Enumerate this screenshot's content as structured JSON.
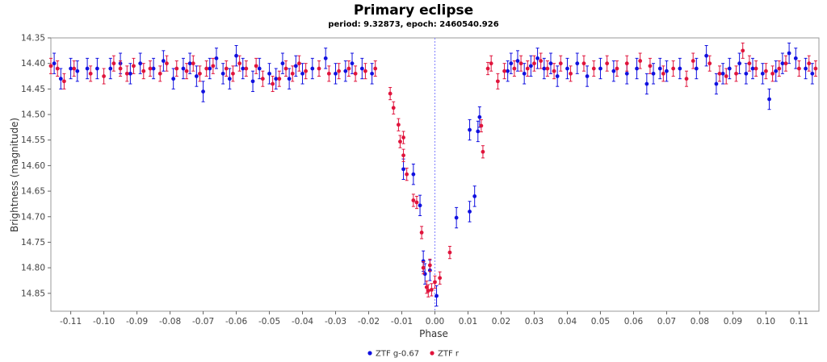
{
  "chart_data": {
    "type": "scatter",
    "title": "Primary eclipse",
    "subtitle": "period: 9.32873, epoch: 2460540.926",
    "xlabel": "Phase",
    "ylabel": "Brightness (magnitude)",
    "xlim": [
      -0.116,
      0.116
    ],
    "ylim": [
      14.885,
      14.35
    ],
    "y_inverted": true,
    "x_ticks": [
      -0.11,
      -0.1,
      -0.09,
      -0.08,
      -0.07,
      -0.06,
      -0.05,
      -0.04,
      -0.03,
      -0.02,
      -0.01,
      0.0,
      0.01,
      0.02,
      0.03,
      0.04,
      0.05,
      0.06,
      0.07,
      0.08,
      0.09,
      0.1,
      0.11
    ],
    "x_tick_labels": [
      "-0.11",
      "-0.10",
      "-0.09",
      "-0.08",
      "-0.07",
      "-0.06",
      "-0.05",
      "-0.04",
      "-0.03",
      "-0.02",
      "-0.01",
      "0.00",
      "0.01",
      "0.02",
      "0.03",
      "0.04",
      "0.05",
      "0.06",
      "0.07",
      "0.08",
      "0.09",
      "0.10",
      "0.11"
    ],
    "y_ticks": [
      14.35,
      14.4,
      14.45,
      14.5,
      14.55,
      14.6,
      14.65,
      14.7,
      14.75,
      14.8,
      14.85
    ],
    "y_tick_labels": [
      "14.35",
      "14.40",
      "14.45",
      "14.50",
      "14.55",
      "14.60",
      "14.65",
      "14.70",
      "14.75",
      "14.80",
      "14.85"
    ],
    "reference_line_x": 0.0,
    "grid": false,
    "legend_position": "bottom-center",
    "series": [
      {
        "name": "ZTF g-0.67",
        "color": "#1010e0",
        "points": [
          [
            -0.115,
            14.4,
            0.02
          ],
          [
            -0.113,
            14.43,
            0.02
          ],
          [
            -0.11,
            14.41,
            0.02
          ],
          [
            -0.108,
            14.415,
            0.02
          ],
          [
            -0.105,
            14.41,
            0.02
          ],
          [
            -0.102,
            14.41,
            0.02
          ],
          [
            -0.098,
            14.41,
            0.02
          ],
          [
            -0.095,
            14.4,
            0.02
          ],
          [
            -0.092,
            14.42,
            0.02
          ],
          [
            -0.089,
            14.4,
            0.02
          ],
          [
            -0.085,
            14.41,
            0.02
          ],
          [
            -0.082,
            14.395,
            0.02
          ],
          [
            -0.079,
            14.43,
            0.02
          ],
          [
            -0.076,
            14.41,
            0.02
          ],
          [
            -0.074,
            14.4,
            0.02
          ],
          [
            -0.072,
            14.425,
            0.02
          ],
          [
            -0.07,
            14.455,
            0.02
          ],
          [
            -0.068,
            14.41,
            0.02
          ],
          [
            -0.066,
            14.39,
            0.02
          ],
          [
            -0.064,
            14.42,
            0.02
          ],
          [
            -0.062,
            14.43,
            0.02
          ],
          [
            -0.06,
            14.385,
            0.02
          ],
          [
            -0.058,
            14.41,
            0.02
          ],
          [
            -0.055,
            14.435,
            0.02
          ],
          [
            -0.053,
            14.41,
            0.02
          ],
          [
            -0.05,
            14.42,
            0.02
          ],
          [
            -0.048,
            14.43,
            0.02
          ],
          [
            -0.046,
            14.4,
            0.02
          ],
          [
            -0.044,
            14.43,
            0.02
          ],
          [
            -0.042,
            14.405,
            0.02
          ],
          [
            -0.04,
            14.42,
            0.02
          ],
          [
            -0.037,
            14.41,
            0.02
          ],
          [
            -0.033,
            14.39,
            0.02
          ],
          [
            -0.03,
            14.42,
            0.02
          ],
          [
            -0.027,
            14.415,
            0.02
          ],
          [
            -0.025,
            14.4,
            0.02
          ],
          [
            -0.022,
            14.41,
            0.02
          ],
          [
            -0.019,
            14.42,
            0.02
          ],
          [
            -0.0095,
            14.607,
            0.02
          ],
          [
            -0.0065,
            14.617,
            0.02
          ],
          [
            -0.0045,
            14.678,
            0.02
          ],
          [
            -0.0035,
            14.787,
            0.02
          ],
          [
            -0.003,
            14.812,
            0.02
          ],
          [
            -0.0015,
            14.805,
            0.02
          ],
          [
            0.0005,
            14.855,
            0.02
          ],
          [
            0.0065,
            14.702,
            0.02
          ],
          [
            0.0105,
            14.69,
            0.02
          ],
          [
            0.0105,
            14.53,
            0.02
          ],
          [
            0.012,
            14.66,
            0.02
          ],
          [
            0.013,
            14.533,
            0.02
          ],
          [
            0.0135,
            14.505,
            0.02
          ],
          [
            0.022,
            14.415,
            0.02
          ],
          [
            0.023,
            14.4,
            0.02
          ],
          [
            0.025,
            14.395,
            0.02
          ],
          [
            0.027,
            14.42,
            0.02
          ],
          [
            0.029,
            14.405,
            0.02
          ],
          [
            0.031,
            14.39,
            0.02
          ],
          [
            0.033,
            14.41,
            0.02
          ],
          [
            0.035,
            14.4,
            0.02
          ],
          [
            0.037,
            14.425,
            0.02
          ],
          [
            0.04,
            14.41,
            0.02
          ],
          [
            0.043,
            14.4,
            0.02
          ],
          [
            0.046,
            14.425,
            0.02
          ],
          [
            0.05,
            14.41,
            0.02
          ],
          [
            0.054,
            14.415,
            0.02
          ],
          [
            0.058,
            14.42,
            0.02
          ],
          [
            0.061,
            14.41,
            0.02
          ],
          [
            0.064,
            14.44,
            0.02
          ],
          [
            0.066,
            14.42,
            0.02
          ],
          [
            0.068,
            14.41,
            0.02
          ],
          [
            0.07,
            14.415,
            0.02
          ],
          [
            0.074,
            14.41,
            0.02
          ],
          [
            0.079,
            14.41,
            0.02
          ],
          [
            0.082,
            14.385,
            0.02
          ],
          [
            0.085,
            14.44,
            0.02
          ],
          [
            0.087,
            14.42,
            0.02
          ],
          [
            0.089,
            14.41,
            0.02
          ],
          [
            0.092,
            14.4,
            0.02
          ],
          [
            0.094,
            14.42,
            0.02
          ],
          [
            0.096,
            14.41,
            0.02
          ],
          [
            0.099,
            14.42,
            0.02
          ],
          [
            0.101,
            14.47,
            0.02
          ],
          [
            0.103,
            14.415,
            0.02
          ],
          [
            0.105,
            14.4,
            0.02
          ],
          [
            0.107,
            14.38,
            0.02
          ],
          [
            0.109,
            14.39,
            0.02
          ],
          [
            0.112,
            14.41,
            0.02
          ],
          [
            0.114,
            14.42,
            0.02
          ]
        ]
      },
      {
        "name": "ZTF r",
        "color": "#e0143c",
        "points": [
          [
            -0.116,
            14.405,
            0.015
          ],
          [
            -0.114,
            14.41,
            0.015
          ],
          [
            -0.112,
            14.435,
            0.015
          ],
          [
            -0.109,
            14.41,
            0.015
          ],
          [
            -0.104,
            14.42,
            0.015
          ],
          [
            -0.1,
            14.425,
            0.015
          ],
          [
            -0.097,
            14.4,
            0.015
          ],
          [
            -0.095,
            14.41,
            0.015
          ],
          [
            -0.093,
            14.42,
            0.015
          ],
          [
            -0.091,
            14.405,
            0.015
          ],
          [
            -0.088,
            14.415,
            0.015
          ],
          [
            -0.086,
            14.41,
            0.015
          ],
          [
            -0.083,
            14.42,
            0.015
          ],
          [
            -0.081,
            14.4,
            0.015
          ],
          [
            -0.078,
            14.41,
            0.015
          ],
          [
            -0.075,
            14.415,
            0.015
          ],
          [
            -0.073,
            14.4,
            0.015
          ],
          [
            -0.071,
            14.42,
            0.015
          ],
          [
            -0.069,
            14.41,
            0.015
          ],
          [
            -0.067,
            14.405,
            0.015
          ],
          [
            -0.063,
            14.41,
            0.015
          ],
          [
            -0.061,
            14.42,
            0.015
          ],
          [
            -0.059,
            14.4,
            0.015
          ],
          [
            -0.057,
            14.41,
            0.015
          ],
          [
            -0.054,
            14.405,
            0.015
          ],
          [
            -0.052,
            14.43,
            0.015
          ],
          [
            -0.049,
            14.44,
            0.015
          ],
          [
            -0.047,
            14.43,
            0.015
          ],
          [
            -0.045,
            14.41,
            0.015
          ],
          [
            -0.043,
            14.42,
            0.015
          ],
          [
            -0.041,
            14.4,
            0.015
          ],
          [
            -0.039,
            14.415,
            0.015
          ],
          [
            -0.035,
            14.41,
            0.015
          ],
          [
            -0.032,
            14.42,
            0.015
          ],
          [
            -0.029,
            14.415,
            0.015
          ],
          [
            -0.026,
            14.41,
            0.015
          ],
          [
            -0.024,
            14.42,
            0.015
          ],
          [
            -0.021,
            14.415,
            0.015
          ],
          [
            -0.018,
            14.41,
            0.015
          ],
          [
            -0.0135,
            14.459,
            0.012
          ],
          [
            -0.0125,
            14.487,
            0.012
          ],
          [
            -0.011,
            14.52,
            0.012
          ],
          [
            -0.0105,
            14.553,
            0.012
          ],
          [
            -0.0095,
            14.545,
            0.012
          ],
          [
            -0.0095,
            14.58,
            0.012
          ],
          [
            -0.0085,
            14.617,
            0.012
          ],
          [
            -0.0065,
            14.668,
            0.012
          ],
          [
            -0.0055,
            14.672,
            0.012
          ],
          [
            -0.004,
            14.731,
            0.012
          ],
          [
            -0.0035,
            14.8,
            0.012
          ],
          [
            -0.0025,
            14.838,
            0.012
          ],
          [
            -0.002,
            14.845,
            0.012
          ],
          [
            -0.0015,
            14.795,
            0.012
          ],
          [
            -0.001,
            14.843,
            0.012
          ],
          [
            0.0,
            14.828,
            0.012
          ],
          [
            0.0015,
            14.82,
            0.012
          ],
          [
            0.0045,
            14.77,
            0.012
          ],
          [
            0.014,
            14.522,
            0.012
          ],
          [
            0.0145,
            14.573,
            0.012
          ],
          [
            0.016,
            14.41,
            0.012
          ],
          [
            0.017,
            14.4,
            0.015
          ],
          [
            0.019,
            14.435,
            0.015
          ],
          [
            0.021,
            14.415,
            0.015
          ],
          [
            0.024,
            14.41,
            0.015
          ],
          [
            0.026,
            14.4,
            0.015
          ],
          [
            0.028,
            14.41,
            0.015
          ],
          [
            0.03,
            14.4,
            0.015
          ],
          [
            0.032,
            14.395,
            0.015
          ],
          [
            0.034,
            14.41,
            0.015
          ],
          [
            0.036,
            14.415,
            0.015
          ],
          [
            0.038,
            14.4,
            0.015
          ],
          [
            0.041,
            14.42,
            0.015
          ],
          [
            0.045,
            14.4,
            0.015
          ],
          [
            0.048,
            14.41,
            0.015
          ],
          [
            0.052,
            14.4,
            0.015
          ],
          [
            0.055,
            14.41,
            0.015
          ],
          [
            0.058,
            14.4,
            0.015
          ],
          [
            0.062,
            14.395,
            0.015
          ],
          [
            0.065,
            14.405,
            0.015
          ],
          [
            0.069,
            14.42,
            0.015
          ],
          [
            0.072,
            14.41,
            0.015
          ],
          [
            0.076,
            14.43,
            0.015
          ],
          [
            0.078,
            14.395,
            0.015
          ],
          [
            0.083,
            14.4,
            0.015
          ],
          [
            0.086,
            14.42,
            0.015
          ],
          [
            0.088,
            14.425,
            0.015
          ],
          [
            0.091,
            14.42,
            0.015
          ],
          [
            0.093,
            14.375,
            0.015
          ],
          [
            0.095,
            14.4,
            0.015
          ],
          [
            0.097,
            14.41,
            0.015
          ],
          [
            0.1,
            14.415,
            0.015
          ],
          [
            0.102,
            14.42,
            0.015
          ],
          [
            0.104,
            14.41,
            0.015
          ],
          [
            0.106,
            14.4,
            0.015
          ],
          [
            0.11,
            14.41,
            0.015
          ],
          [
            0.113,
            14.4,
            0.015
          ],
          [
            0.115,
            14.41,
            0.015
          ]
        ]
      }
    ]
  }
}
